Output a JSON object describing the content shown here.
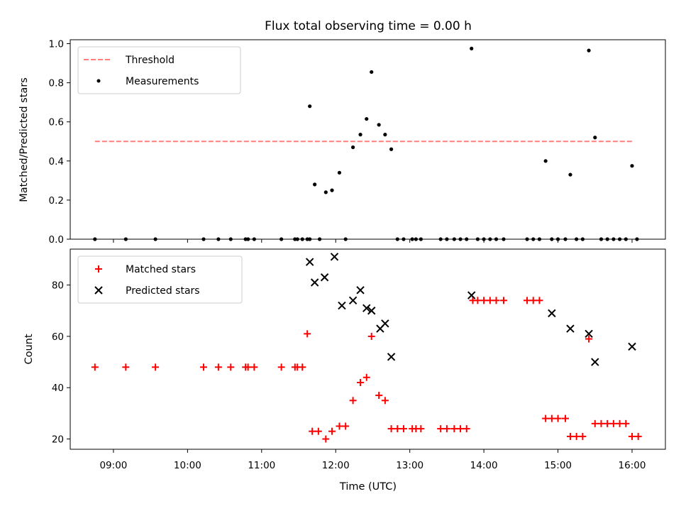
{
  "chart_data": [
    {
      "type": "scatter",
      "panel": "top",
      "title": "Flux total observing time = 0.00 h",
      "ylabel": "Matched/Predicted stars",
      "ylim": [
        0,
        1.02
      ],
      "yticks": [
        0,
        0.2,
        0.4,
        0.6,
        0.8,
        1.0
      ],
      "ytick_labels": [
        "0.0",
        "0.2",
        "0.4",
        "0.6",
        "0.8",
        "1.0"
      ],
      "xlim": [
        "08:25",
        "16:27"
      ],
      "xticks": [
        "09:00",
        "10:00",
        "11:00",
        "12:00",
        "13:00",
        "14:00",
        "15:00",
        "16:00"
      ],
      "legend": {
        "position": "upper-left",
        "entries": [
          "Threshold",
          "Measurements"
        ]
      },
      "threshold": {
        "name": "Threshold",
        "value": 0.5,
        "x_range": [
          "08:45",
          "16:00"
        ],
        "color": "#ff7f7f",
        "style": "dashed"
      },
      "series": [
        {
          "name": "Measurements",
          "color": "#000000",
          "points": [
            [
              "08:45",
              0.0
            ],
            [
              "09:10",
              0.0
            ],
            [
              "09:34",
              0.0
            ],
            [
              "10:13",
              0.0
            ],
            [
              "10:25",
              0.0
            ],
            [
              "10:35",
              0.0
            ],
            [
              "10:47",
              0.0
            ],
            [
              "10:49",
              0.0
            ],
            [
              "10:54",
              0.0
            ],
            [
              "11:16",
              0.0
            ],
            [
              "11:27",
              0.0
            ],
            [
              "11:29",
              0.0
            ],
            [
              "11:33",
              0.0
            ],
            [
              "11:37",
              0.0
            ],
            [
              "11:39",
              0.0
            ],
            [
              "11:39",
              0.68
            ],
            [
              "11:43",
              0.28
            ],
            [
              "11:47",
              0.0
            ],
            [
              "11:52",
              0.24
            ],
            [
              "11:57",
              0.25
            ],
            [
              "12:03",
              0.34
            ],
            [
              "12:08",
              0.0
            ],
            [
              "12:14",
              0.47
            ],
            [
              "12:20",
              0.535
            ],
            [
              "12:25",
              0.615
            ],
            [
              "12:29",
              0.855
            ],
            [
              "12:35",
              0.585
            ],
            [
              "12:40",
              0.535
            ],
            [
              "12:45",
              0.46
            ],
            [
              "12:50",
              0.0
            ],
            [
              "12:55",
              0.0
            ],
            [
              "13:02",
              0.0
            ],
            [
              "13:05",
              0.0
            ],
            [
              "13:09",
              0.0
            ],
            [
              "13:25",
              0.0
            ],
            [
              "13:30",
              0.0
            ],
            [
              "13:36",
              0.0
            ],
            [
              "13:41",
              0.0
            ],
            [
              "13:46",
              0.0
            ],
            [
              "13:50",
              0.975
            ],
            [
              "13:55",
              0.0
            ],
            [
              "14:00",
              0.0
            ],
            [
              "14:05",
              0.0
            ],
            [
              "14:10",
              0.0
            ],
            [
              "14:16",
              0.0
            ],
            [
              "14:35",
              0.0
            ],
            [
              "14:40",
              0.0
            ],
            [
              "14:45",
              0.0
            ],
            [
              "14:50",
              0.4
            ],
            [
              "14:55",
              0.0
            ],
            [
              "15:00",
              0.0
            ],
            [
              "15:06",
              0.0
            ],
            [
              "15:10",
              0.33
            ],
            [
              "15:15",
              0.0
            ],
            [
              "15:20",
              0.0
            ],
            [
              "15:25",
              0.965
            ],
            [
              "15:30",
              0.52
            ],
            [
              "15:35",
              0.0
            ],
            [
              "15:40",
              0.0
            ],
            [
              "15:45",
              0.0
            ],
            [
              "15:50",
              0.0
            ],
            [
              "15:55",
              0.0
            ],
            [
              "16:00",
              0.375
            ],
            [
              "16:04",
              0.0
            ]
          ]
        }
      ]
    },
    {
      "type": "scatter",
      "panel": "bottom",
      "xlabel": "Time (UTC)",
      "ylabel": "Count",
      "ylim": [
        16,
        94
      ],
      "yticks": [
        20,
        40,
        60,
        80
      ],
      "xlim": [
        "08:25",
        "16:27"
      ],
      "xticks": [
        "09:00",
        "10:00",
        "11:00",
        "12:00",
        "13:00",
        "14:00",
        "15:00",
        "16:00"
      ],
      "legend": {
        "position": "upper-left",
        "entries": [
          "Matched stars",
          "Predicted stars"
        ]
      },
      "series": [
        {
          "name": "Matched stars",
          "marker": "plus",
          "color": "#ff0000",
          "points": [
            [
              "08:45",
              48
            ],
            [
              "09:10",
              48
            ],
            [
              "09:34",
              48
            ],
            [
              "10:13",
              48
            ],
            [
              "10:25",
              48
            ],
            [
              "10:35",
              48
            ],
            [
              "10:47",
              48
            ],
            [
              "10:49",
              48
            ],
            [
              "10:54",
              48
            ],
            [
              "11:16",
              48
            ],
            [
              "11:27",
              48
            ],
            [
              "11:29",
              48
            ],
            [
              "11:33",
              48
            ],
            [
              "11:37",
              61
            ],
            [
              "11:41",
              23
            ],
            [
              "11:46",
              23
            ],
            [
              "11:52",
              20
            ],
            [
              "11:57",
              23
            ],
            [
              "12:03",
              25
            ],
            [
              "12:08",
              25
            ],
            [
              "12:14",
              35
            ],
            [
              "12:20",
              42
            ],
            [
              "12:25",
              44
            ],
            [
              "12:29",
              60
            ],
            [
              "12:35",
              37
            ],
            [
              "12:40",
              35
            ],
            [
              "12:45",
              24
            ],
            [
              "12:50",
              24
            ],
            [
              "12:55",
              24
            ],
            [
              "13:02",
              24
            ],
            [
              "13:05",
              24
            ],
            [
              "13:09",
              24
            ],
            [
              "13:25",
              24
            ],
            [
              "13:30",
              24
            ],
            [
              "13:36",
              24
            ],
            [
              "13:41",
              24
            ],
            [
              "13:46",
              24
            ],
            [
              "13:51",
              74
            ],
            [
              "13:55",
              74
            ],
            [
              "14:00",
              74
            ],
            [
              "14:05",
              74
            ],
            [
              "14:10",
              74
            ],
            [
              "14:16",
              74
            ],
            [
              "14:35",
              74
            ],
            [
              "14:40",
              74
            ],
            [
              "14:45",
              74
            ],
            [
              "14:50",
              28
            ],
            [
              "14:55",
              28
            ],
            [
              "15:00",
              28
            ],
            [
              "15:06",
              28
            ],
            [
              "15:10",
              21
            ],
            [
              "15:15",
              21
            ],
            [
              "15:20",
              21
            ],
            [
              "15:25",
              59
            ],
            [
              "15:30",
              26
            ],
            [
              "15:35",
              26
            ],
            [
              "15:40",
              26
            ],
            [
              "15:45",
              26
            ],
            [
              "15:50",
              26
            ],
            [
              "15:55",
              26
            ],
            [
              "16:00",
              21
            ],
            [
              "16:05",
              21
            ]
          ]
        },
        {
          "name": "Predicted stars",
          "marker": "x",
          "color": "#000000",
          "points": [
            [
              "11:39",
              89
            ],
            [
              "11:43",
              81
            ],
            [
              "11:51",
              83
            ],
            [
              "11:59",
              91
            ],
            [
              "12:05",
              72
            ],
            [
              "12:14",
              74
            ],
            [
              "12:20",
              78
            ],
            [
              "12:25",
              71
            ],
            [
              "12:29",
              70
            ],
            [
              "12:36",
              63
            ],
            [
              "12:40",
              65
            ],
            [
              "12:45",
              52
            ],
            [
              "13:50",
              76
            ],
            [
              "14:55",
              69
            ],
            [
              "15:10",
              63
            ],
            [
              "15:25",
              61
            ],
            [
              "15:30",
              50
            ],
            [
              "16:00",
              56
            ]
          ]
        }
      ]
    }
  ]
}
